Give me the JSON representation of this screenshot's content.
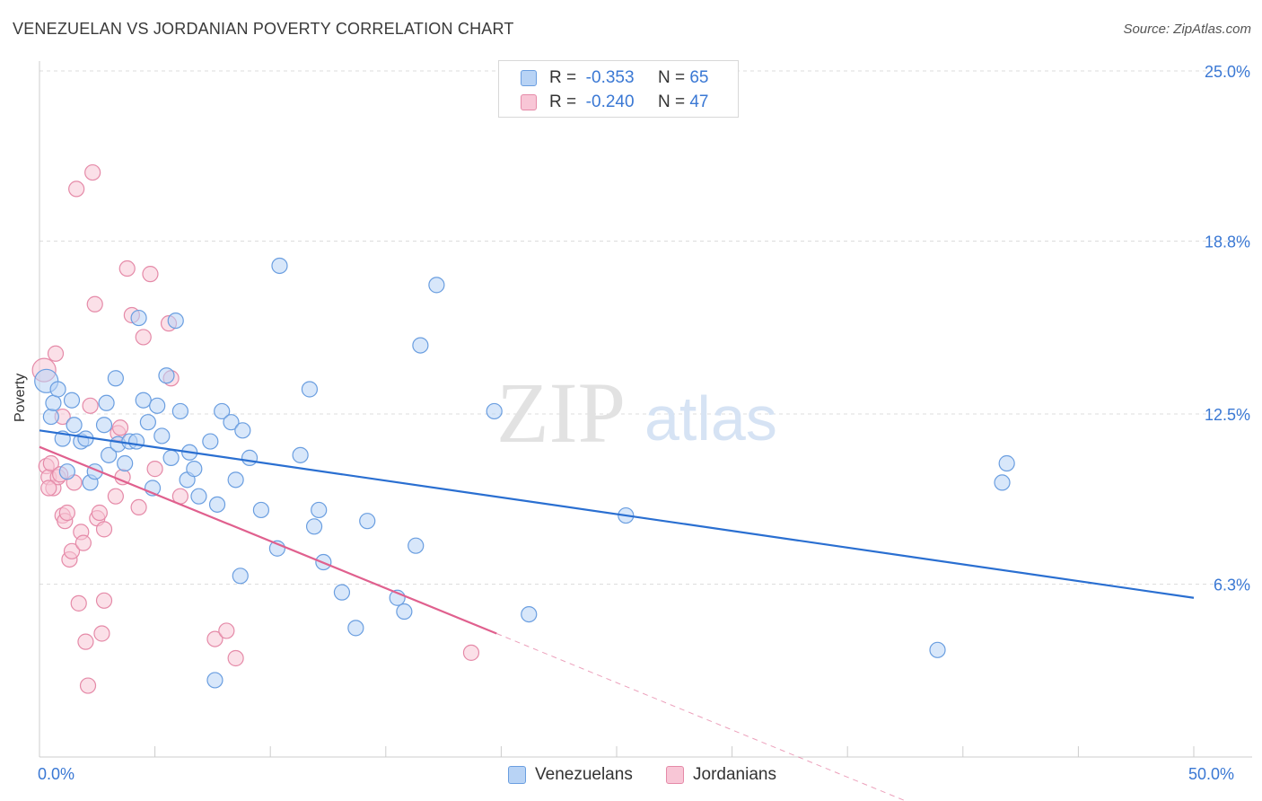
{
  "title": "VENEZUELAN VS JORDANIAN POVERTY CORRELATION CHART",
  "source": "Source: ZipAtlas.com",
  "watermark": {
    "zip": "ZIP",
    "atlas": "atlas"
  },
  "legend": {
    "rows": [
      {
        "r_label": "R =",
        "r_value": "-0.353",
        "n_label": "N =",
        "n_value": "65"
      },
      {
        "r_label": "R =",
        "r_value": "-0.240",
        "n_label": "N =",
        "n_value": "47"
      }
    ]
  },
  "bottom_legend": {
    "venezuelans": "Venezuelans",
    "jordanians": "Jordanians"
  },
  "colors": {
    "venezuelans_fill": "#b8d3f5",
    "venezuelans_stroke": "#6a9ee0",
    "venezuelans_line": "#2a6fd1",
    "jordanians_fill": "#f8c6d6",
    "jordanians_stroke": "#e58aa8",
    "jordanians_line": "#e0608e",
    "tick_text": "#3a78d4",
    "grid": "#dddddd"
  },
  "chart_data": {
    "type": "scatter",
    "title": "VENEZUELAN VS JORDANIAN POVERTY CORRELATION CHART",
    "xlabel": "",
    "ylabel": "Poverty",
    "xlim": [
      0,
      50
    ],
    "ylim": [
      0,
      25
    ],
    "x_tick_labels": [
      "0.0%",
      "50.0%"
    ],
    "y_ticks": [
      6.3,
      12.5,
      18.8,
      25.0
    ],
    "y_tick_labels": [
      "6.3%",
      "12.5%",
      "18.8%",
      "25.0%"
    ],
    "grid": true,
    "legend_position": "top-center",
    "series": [
      {
        "name": "Venezuelans",
        "r": -0.353,
        "n": 65,
        "trend": {
          "x": [
            0,
            50
          ],
          "y": [
            11.9,
            5.8
          ]
        },
        "points": [
          [
            0.3,
            13.7
          ],
          [
            0.5,
            12.4
          ],
          [
            0.6,
            12.9
          ],
          [
            0.8,
            13.4
          ],
          [
            1.0,
            11.6
          ],
          [
            1.2,
            10.4
          ],
          [
            1.4,
            13.0
          ],
          [
            1.5,
            12.1
          ],
          [
            1.8,
            11.5
          ],
          [
            2.0,
            11.6
          ],
          [
            2.2,
            10.0
          ],
          [
            2.4,
            10.4
          ],
          [
            2.8,
            12.1
          ],
          [
            2.9,
            12.9
          ],
          [
            3.0,
            11.0
          ],
          [
            3.3,
            13.8
          ],
          [
            3.4,
            11.4
          ],
          [
            3.7,
            10.7
          ],
          [
            3.9,
            11.5
          ],
          [
            4.2,
            11.5
          ],
          [
            4.3,
            16.0
          ],
          [
            4.5,
            13.0
          ],
          [
            4.7,
            12.2
          ],
          [
            4.9,
            9.8
          ],
          [
            5.1,
            12.8
          ],
          [
            5.3,
            11.7
          ],
          [
            5.5,
            13.9
          ],
          [
            5.7,
            10.9
          ],
          [
            5.9,
            15.9
          ],
          [
            6.1,
            12.6
          ],
          [
            6.4,
            10.1
          ],
          [
            6.5,
            11.1
          ],
          [
            6.7,
            10.5
          ],
          [
            6.9,
            9.5
          ],
          [
            7.4,
            11.5
          ],
          [
            7.7,
            9.2
          ],
          [
            7.9,
            12.6
          ],
          [
            8.3,
            12.2
          ],
          [
            8.5,
            10.1
          ],
          [
            8.7,
            6.6
          ],
          [
            8.8,
            11.9
          ],
          [
            9.1,
            10.9
          ],
          [
            9.6,
            9.0
          ],
          [
            10.3,
            7.6
          ],
          [
            10.4,
            17.9
          ],
          [
            11.3,
            11.0
          ],
          [
            11.7,
            13.4
          ],
          [
            11.9,
            8.4
          ],
          [
            12.1,
            9.0
          ],
          [
            12.3,
            7.1
          ],
          [
            13.1,
            6.0
          ],
          [
            13.7,
            4.7
          ],
          [
            14.2,
            8.6
          ],
          [
            15.5,
            5.8
          ],
          [
            15.8,
            5.3
          ],
          [
            16.3,
            7.7
          ],
          [
            16.5,
            15.0
          ],
          [
            17.2,
            17.2
          ],
          [
            19.7,
            12.6
          ],
          [
            21.2,
            5.2
          ],
          [
            25.4,
            8.8
          ],
          [
            38.9,
            3.9
          ],
          [
            41.7,
            10.0
          ],
          [
            41.9,
            10.7
          ],
          [
            7.6,
            2.8
          ]
        ]
      },
      {
        "name": "Jordanians",
        "r": -0.24,
        "n": 47,
        "trend": {
          "x": [
            0,
            19.8
          ],
          "y": [
            11.3,
            4.5
          ]
        },
        "trend_dashed": {
          "x": [
            19.8,
            50
          ],
          "y": [
            4.5,
            -5.9
          ]
        },
        "points": [
          [
            0.2,
            14.1
          ],
          [
            0.3,
            10.6
          ],
          [
            0.4,
            10.2
          ],
          [
            0.5,
            10.7
          ],
          [
            0.6,
            9.8
          ],
          [
            0.7,
            14.7
          ],
          [
            0.8,
            10.2
          ],
          [
            0.9,
            10.3
          ],
          [
            1.0,
            12.4
          ],
          [
            1.0,
            8.8
          ],
          [
            1.1,
            8.6
          ],
          [
            1.2,
            8.9
          ],
          [
            1.3,
            7.2
          ],
          [
            1.4,
            7.5
          ],
          [
            1.5,
            10.0
          ],
          [
            1.7,
            5.6
          ],
          [
            1.8,
            8.2
          ],
          [
            1.9,
            7.8
          ],
          [
            2.0,
            4.2
          ],
          [
            2.1,
            2.6
          ],
          [
            2.2,
            12.8
          ],
          [
            2.3,
            21.3
          ],
          [
            2.4,
            16.5
          ],
          [
            2.5,
            8.7
          ],
          [
            2.6,
            8.9
          ],
          [
            2.7,
            4.5
          ],
          [
            2.8,
            8.3
          ],
          [
            2.8,
            5.7
          ],
          [
            3.3,
            9.5
          ],
          [
            3.4,
            11.8
          ],
          [
            3.5,
            12.0
          ],
          [
            3.6,
            10.2
          ],
          [
            3.8,
            17.8
          ],
          [
            4.0,
            16.1
          ],
          [
            4.3,
            9.1
          ],
          [
            4.5,
            15.3
          ],
          [
            4.8,
            17.6
          ],
          [
            5.0,
            10.5
          ],
          [
            5.6,
            15.8
          ],
          [
            5.7,
            13.8
          ],
          [
            6.1,
            9.5
          ],
          [
            7.6,
            4.3
          ],
          [
            8.1,
            4.6
          ],
          [
            8.5,
            3.6
          ],
          [
            1.6,
            20.7
          ],
          [
            18.7,
            3.8
          ],
          [
            0.4,
            9.8
          ]
        ]
      }
    ]
  }
}
